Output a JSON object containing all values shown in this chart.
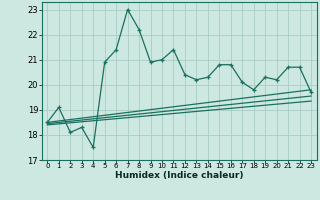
{
  "xlabel": "Humidex (Indice chaleur)",
  "bg_color": "#cce8e0",
  "grid_color": "#aaccC4",
  "line_color": "#1a7060",
  "xlim": [
    -0.5,
    23.5
  ],
  "ylim": [
    17.0,
    23.3
  ],
  "yticks": [
    17,
    18,
    19,
    20,
    21,
    22,
    23
  ],
  "xticks": [
    0,
    1,
    2,
    3,
    4,
    5,
    6,
    7,
    8,
    9,
    10,
    11,
    12,
    13,
    14,
    15,
    16,
    17,
    18,
    19,
    20,
    21,
    22,
    23
  ],
  "main_x": [
    0,
    1,
    2,
    3,
    4,
    5,
    6,
    7,
    8,
    9,
    10,
    11,
    12,
    13,
    14,
    15,
    16,
    17,
    18,
    19,
    20,
    21,
    22,
    23
  ],
  "main_y": [
    18.5,
    19.1,
    18.1,
    18.3,
    17.5,
    20.9,
    21.4,
    23.0,
    22.2,
    20.9,
    21.0,
    21.4,
    20.4,
    20.2,
    20.3,
    20.8,
    20.8,
    20.1,
    19.8,
    20.3,
    20.2,
    20.7,
    20.7,
    19.7
  ],
  "trend1_x": [
    0,
    23
  ],
  "trend1_y": [
    18.5,
    19.8
  ],
  "trend2_x": [
    0,
    23
  ],
  "trend2_y": [
    18.45,
    19.55
  ],
  "trend3_x": [
    0,
    23
  ],
  "trend3_y": [
    18.4,
    19.35
  ]
}
